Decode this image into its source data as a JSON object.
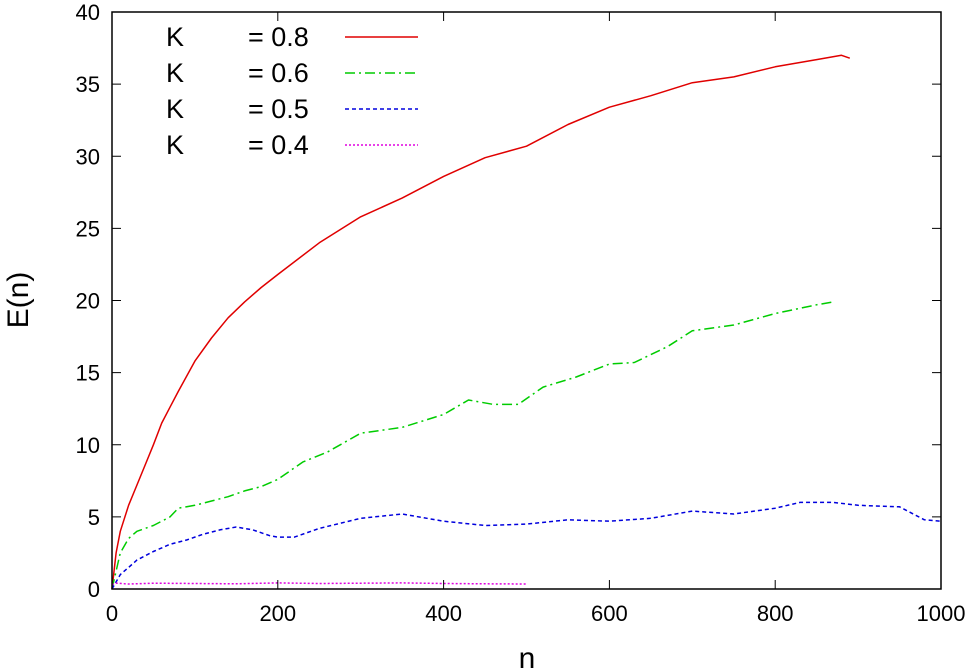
{
  "chart_data": {
    "type": "line",
    "xlabel": "n",
    "ylabel": "E(n)",
    "xlim": [
      0,
      1000
    ],
    "ylim": [
      0,
      40
    ],
    "x_ticks": [
      0,
      200,
      400,
      600,
      800,
      1000
    ],
    "y_ticks": [
      0,
      5,
      10,
      15,
      20,
      25,
      30,
      35,
      40
    ],
    "legend_position": "top-left",
    "grid": false,
    "series": [
      {
        "name": "K = 0.8",
        "legend_symbol": "K",
        "legend_value": "= 0.8",
        "color": "#e00000",
        "dash": "solid",
        "x": [
          0,
          5,
          10,
          20,
          30,
          40,
          50,
          60,
          70,
          80,
          100,
          120,
          140,
          160,
          180,
          200,
          250,
          300,
          350,
          400,
          450,
          500,
          550,
          600,
          650,
          700,
          750,
          800,
          850,
          880,
          890
        ],
        "y": [
          0,
          2.5,
          4,
          5.8,
          7.2,
          8.6,
          10,
          11.5,
          12.6,
          13.7,
          15.8,
          17.4,
          18.8,
          19.9,
          20.9,
          21.8,
          24,
          25.8,
          27.1,
          28.6,
          29.9,
          30.7,
          32.2,
          33.4,
          34.2,
          35.1,
          35.5,
          36.2,
          36.7,
          37,
          36.8
        ]
      },
      {
        "name": "K = 0.6",
        "legend_symbol": "K",
        "legend_value": "= 0.6",
        "color": "#00cc00",
        "dash": "dashdot",
        "x": [
          0,
          10,
          20,
          30,
          50,
          70,
          80,
          100,
          120,
          140,
          160,
          180,
          200,
          230,
          260,
          300,
          350,
          400,
          430,
          460,
          490,
          520,
          560,
          600,
          630,
          670,
          700,
          750,
          800,
          850,
          870
        ],
        "y": [
          0,
          2.5,
          3.5,
          4,
          4.4,
          5,
          5.6,
          5.8,
          6.1,
          6.4,
          6.8,
          7.1,
          7.6,
          8.8,
          9.5,
          10.8,
          11.2,
          12.1,
          13.1,
          12.8,
          12.8,
          14,
          14.7,
          15.6,
          15.7,
          16.8,
          17.9,
          18.3,
          19.1,
          19.7,
          19.9
        ]
      },
      {
        "name": "K = 0.5",
        "legend_symbol": "K",
        "legend_value": "= 0.5",
        "color": "#0000dd",
        "dash": "dashed",
        "x": [
          0,
          10,
          20,
          30,
          50,
          70,
          90,
          110,
          130,
          150,
          170,
          190,
          200,
          220,
          250,
          300,
          350,
          400,
          450,
          500,
          550,
          600,
          650,
          700,
          750,
          800,
          830,
          870,
          900,
          950,
          980,
          1000
        ],
        "y": [
          0,
          1,
          1.5,
          2,
          2.6,
          3.1,
          3.4,
          3.8,
          4.1,
          4.3,
          4.1,
          3.7,
          3.6,
          3.6,
          4.2,
          4.9,
          5.2,
          4.7,
          4.4,
          4.5,
          4.8,
          4.7,
          4.9,
          5.4,
          5.2,
          5.6,
          6,
          6,
          5.8,
          5.7,
          4.8,
          4.7
        ]
      },
      {
        "name": "K = 0.4",
        "legend_symbol": "K",
        "legend_value": "= 0.4",
        "color": "#e000e0",
        "dash": "dotted",
        "x": [
          0,
          5,
          20,
          50,
          100,
          150,
          200,
          250,
          300,
          350,
          400,
          450,
          500
        ],
        "y": [
          0.3,
          0.4,
          0.35,
          0.4,
          0.38,
          0.36,
          0.42,
          0.38,
          0.4,
          0.42,
          0.38,
          0.36,
          0.35
        ]
      }
    ]
  }
}
